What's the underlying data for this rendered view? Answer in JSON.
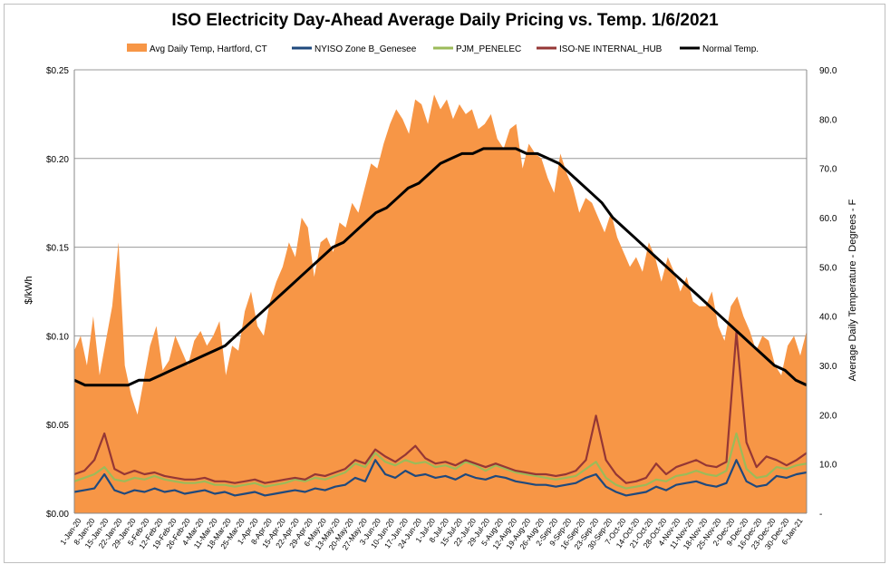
{
  "chart_data": {
    "type": "line",
    "title": "ISO Electricity Day-Ahead Average Daily Pricing vs. Temp. 1/6/2021",
    "ylabel": "$/kWh",
    "y2label": "Average Daily Temperature - Degrees - F",
    "xlabel": "",
    "x_range": [
      "2020-01-01",
      "2021-01-06"
    ],
    "ylim": [
      0,
      0.25
    ],
    "y2lim": [
      0,
      90
    ],
    "grid": "horizontal",
    "legend": "top",
    "y_ticks": [
      "$0.00",
      "$0.05",
      "$0.10",
      "$0.15",
      "$0.20",
      "$0.25"
    ],
    "y2_ticks": [
      "-",
      "10.0",
      "20.0",
      "30.0",
      "40.0",
      "50.0",
      "60.0",
      "70.0",
      "80.0",
      "90.0"
    ],
    "x_tick_labels": [
      "1-Jan-20",
      "8-Jan-20",
      "15-Jan-20",
      "22-Jan-20",
      "29-Jan-20",
      "5-Feb-20",
      "12-Feb-20",
      "19-Feb-20",
      "26-Feb-20",
      "4-Mar-20",
      "11-Mar-20",
      "18-Mar-20",
      "25-Mar-20",
      "1-Apr-20",
      "8-Apr-20",
      "15-Apr-20",
      "22-Apr-20",
      "29-Apr-20",
      "6-May-20",
      "13-May-20",
      "20-May-20",
      "27-May-20",
      "3-Jun-20",
      "10-Jun-20",
      "17-Jun-20",
      "24-Jun-20",
      "1-Jul-20",
      "8-Jul-20",
      "15-Jul-20",
      "22-Jul-20",
      "29-Jul-20",
      "5-Aug-20",
      "12-Aug-20",
      "19-Aug-20",
      "26-Aug-20",
      "2-Sep-20",
      "9-Sep-20",
      "16-Sep-20",
      "23-Sep-20",
      "30-Sep-20",
      "7-Oct-20",
      "14-Oct-20",
      "21-Oct-20",
      "28-Oct-20",
      "4-Nov-20",
      "11-Nov-20",
      "18-Nov-20",
      "25-Nov-20",
      "2-Dec-20",
      "9-Dec-20",
      "16-Dec-20",
      "23-Dec-20",
      "30-Dec-20",
      "6-Jan-21"
    ],
    "series": [
      {
        "name": "Avg Daily Temp, Hartford, CT",
        "type": "area",
        "axis": "right",
        "color": "#f79646",
        "values": [
          33,
          36,
          30,
          40,
          28,
          35,
          42,
          55,
          30,
          24,
          20,
          27,
          34,
          38,
          29,
          31,
          36,
          33,
          30,
          35,
          37,
          34,
          36,
          39,
          28,
          34,
          33,
          41,
          45,
          38,
          36,
          43,
          47,
          50,
          55,
          52,
          60,
          58,
          48,
          55,
          56,
          53,
          59,
          58,
          63,
          61,
          66,
          71,
          70,
          75,
          79,
          82,
          80,
          77,
          84,
          83,
          79,
          85,
          82,
          84,
          80,
          83,
          81,
          82,
          78,
          79,
          81,
          76,
          74,
          78,
          79,
          70,
          75,
          73,
          72,
          68,
          65,
          73,
          69,
          66,
          61,
          64,
          63,
          60,
          57,
          61,
          56,
          53,
          50,
          52,
          49,
          55,
          52,
          47,
          52,
          49,
          45,
          48,
          43,
          42,
          42,
          45,
          38,
          35,
          42,
          44,
          40,
          37,
          33,
          36,
          35,
          30,
          28,
          34,
          36,
          32,
          37
        ]
      },
      {
        "name": "NYISO Zone B_Genesee",
        "type": "line",
        "axis": "left",
        "color": "#1f497d",
        "values": [
          0.012,
          0.013,
          0.014,
          0.022,
          0.013,
          0.011,
          0.013,
          0.012,
          0.014,
          0.012,
          0.013,
          0.011,
          0.012,
          0.013,
          0.011,
          0.012,
          0.01,
          0.011,
          0.012,
          0.01,
          0.011,
          0.012,
          0.013,
          0.012,
          0.014,
          0.013,
          0.015,
          0.016,
          0.02,
          0.018,
          0.03,
          0.022,
          0.02,
          0.024,
          0.021,
          0.022,
          0.02,
          0.021,
          0.019,
          0.022,
          0.02,
          0.019,
          0.021,
          0.02,
          0.018,
          0.017,
          0.016,
          0.016,
          0.015,
          0.016,
          0.017,
          0.02,
          0.022,
          0.015,
          0.012,
          0.01,
          0.011,
          0.012,
          0.015,
          0.013,
          0.016,
          0.017,
          0.018,
          0.016,
          0.015,
          0.017,
          0.03,
          0.018,
          0.015,
          0.016,
          0.021,
          0.02,
          0.022,
          0.023
        ]
      },
      {
        "name": "PJM_PENELEC",
        "type": "line",
        "axis": "left",
        "color": "#9bbb59",
        "values": [
          0.018,
          0.02,
          0.022,
          0.026,
          0.019,
          0.018,
          0.02,
          0.019,
          0.021,
          0.019,
          0.018,
          0.017,
          0.017,
          0.018,
          0.016,
          0.016,
          0.015,
          0.016,
          0.017,
          0.015,
          0.016,
          0.017,
          0.019,
          0.018,
          0.02,
          0.019,
          0.021,
          0.023,
          0.028,
          0.026,
          0.034,
          0.029,
          0.027,
          0.03,
          0.028,
          0.029,
          0.026,
          0.027,
          0.025,
          0.029,
          0.027,
          0.024,
          0.027,
          0.025,
          0.023,
          0.022,
          0.021,
          0.02,
          0.019,
          0.02,
          0.021,
          0.025,
          0.029,
          0.02,
          0.016,
          0.014,
          0.015,
          0.016,
          0.019,
          0.018,
          0.021,
          0.022,
          0.024,
          0.022,
          0.021,
          0.024,
          0.045,
          0.025,
          0.02,
          0.021,
          0.026,
          0.025,
          0.027,
          0.028
        ]
      },
      {
        "name": "ISO-NE INTERNAL_HUB",
        "type": "line",
        "axis": "left",
        "color": "#953735",
        "values": [
          0.022,
          0.024,
          0.03,
          0.045,
          0.025,
          0.022,
          0.024,
          0.022,
          0.023,
          0.021,
          0.02,
          0.019,
          0.019,
          0.02,
          0.018,
          0.018,
          0.017,
          0.018,
          0.019,
          0.017,
          0.018,
          0.019,
          0.02,
          0.019,
          0.022,
          0.021,
          0.023,
          0.025,
          0.03,
          0.028,
          0.036,
          0.032,
          0.029,
          0.033,
          0.038,
          0.031,
          0.028,
          0.029,
          0.027,
          0.03,
          0.028,
          0.026,
          0.028,
          0.026,
          0.024,
          0.023,
          0.022,
          0.022,
          0.021,
          0.022,
          0.024,
          0.03,
          0.055,
          0.03,
          0.022,
          0.017,
          0.018,
          0.02,
          0.028,
          0.022,
          0.026,
          0.028,
          0.03,
          0.027,
          0.026,
          0.029,
          0.102,
          0.04,
          0.026,
          0.032,
          0.03,
          0.027,
          0.03,
          0.034
        ]
      },
      {
        "name": "Normal Temp.",
        "type": "line",
        "axis": "right",
        "color": "#000000",
        "values": [
          27,
          26,
          26,
          26,
          26,
          26,
          27,
          27,
          28,
          29,
          30,
          31,
          32,
          33,
          34,
          36,
          38,
          40,
          42,
          44,
          46,
          48,
          50,
          52,
          54,
          55,
          57,
          59,
          61,
          62,
          64,
          66,
          67,
          69,
          71,
          72,
          73,
          73,
          74,
          74,
          74,
          74,
          73,
          73,
          72,
          71,
          69,
          67,
          65,
          63,
          60,
          58,
          56,
          54,
          52,
          50,
          48,
          46,
          44,
          42,
          40,
          38,
          36,
          34,
          32,
          30,
          29,
          27,
          26
        ]
      }
    ]
  }
}
